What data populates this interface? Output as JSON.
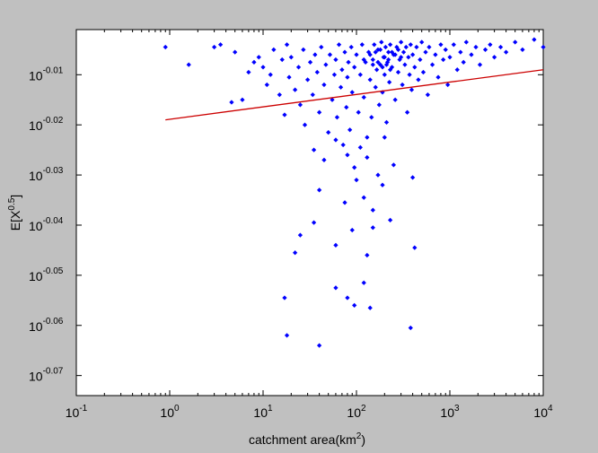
{
  "chart_data": {
    "type": "scatter",
    "title": "",
    "xlabel": "catchment area(km",
    "xlabel_sup": "2",
    "xlabel_suffix": ")",
    "ylabel": "E[X",
    "ylabel_sup": "0.5",
    "ylabel_suffix": "]",
    "xscale": "log",
    "yscale": "log",
    "xlim": [
      0.1,
      10000
    ],
    "ylim_exponent": [
      -0.074,
      -0.001
    ],
    "x_ticks": [
      {
        "base": "10",
        "exp": "-1",
        "value": 0.1
      },
      {
        "base": "10",
        "exp": "0",
        "value": 1
      },
      {
        "base": "10",
        "exp": "1",
        "value": 10
      },
      {
        "base": "10",
        "exp": "2",
        "value": 100
      },
      {
        "base": "10",
        "exp": "3",
        "value": 1000
      },
      {
        "base": "10",
        "exp": "4",
        "value": 10000
      }
    ],
    "y_ticks": [
      {
        "base": "10",
        "exp": "-0.01",
        "value": -0.01
      },
      {
        "base": "10",
        "exp": "-0.02",
        "value": -0.02
      },
      {
        "base": "10",
        "exp": "-0.03",
        "value": -0.03
      },
      {
        "base": "10",
        "exp": "-0.04",
        "value": -0.04
      },
      {
        "base": "10",
        "exp": "-0.05",
        "value": -0.05
      },
      {
        "base": "10",
        "exp": "-0.06",
        "value": -0.06
      },
      {
        "base": "10",
        "exp": "-0.07",
        "value": -0.07
      }
    ],
    "grid": false,
    "legend": "none",
    "series": [
      {
        "kind": "points",
        "color": "#0000ff",
        "marker": "diamond",
        "points": [
          [
            0.9,
            -0.0045
          ],
          [
            1.6,
            -0.008
          ],
          [
            3.0,
            -0.0045
          ],
          [
            3.5,
            -0.004
          ],
          [
            4.6,
            -0.0155
          ],
          [
            5,
            -0.0055
          ],
          [
            6,
            -0.015
          ],
          [
            7,
            -0.0095
          ],
          [
            8,
            -0.0075
          ],
          [
            9,
            -0.0065
          ],
          [
            10,
            -0.0085
          ],
          [
            11,
            -0.012
          ],
          [
            12,
            -0.01
          ],
          [
            13,
            -0.005
          ],
          [
            15,
            -0.014
          ],
          [
            16,
            -0.007
          ],
          [
            17,
            -0.018
          ],
          [
            18,
            -0.004
          ],
          [
            19,
            -0.0105
          ],
          [
            20,
            -0.0065
          ],
          [
            22,
            -0.013
          ],
          [
            24,
            -0.0085
          ],
          [
            25,
            -0.016
          ],
          [
            27,
            -0.005
          ],
          [
            28,
            -0.02
          ],
          [
            30,
            -0.011
          ],
          [
            32,
            -0.0075
          ],
          [
            34,
            -0.014
          ],
          [
            36,
            -0.006
          ],
          [
            38,
            -0.0095
          ],
          [
            40,
            -0.0175
          ],
          [
            42,
            -0.0045
          ],
          [
            45,
            -0.012
          ],
          [
            47,
            -0.008
          ],
          [
            50,
            -0.0215
          ],
          [
            52,
            -0.006
          ],
          [
            55,
            -0.015
          ],
          [
            58,
            -0.01
          ],
          [
            60,
            -0.007
          ],
          [
            62,
            -0.0185
          ],
          [
            65,
            -0.004
          ],
          [
            68,
            -0.0125
          ],
          [
            70,
            -0.009
          ],
          [
            72,
            -0.024
          ],
          [
            75,
            -0.0055
          ],
          [
            78,
            -0.0165
          ],
          [
            80,
            -0.0105
          ],
          [
            82,
            -0.0075
          ],
          [
            85,
            -0.021
          ],
          [
            88,
            -0.0045
          ],
          [
            90,
            -0.0135
          ],
          [
            95,
            -0.0085
          ],
          [
            100,
            -0.006
          ],
          [
            105,
            -0.0175
          ],
          [
            110,
            -0.01
          ],
          [
            115,
            -0.004
          ],
          [
            120,
            -0.0145
          ],
          [
            125,
            -0.0075
          ],
          [
            130,
            -0.0225
          ],
          [
            135,
            -0.0055
          ],
          [
            140,
            -0.011
          ],
          [
            145,
            -0.0185
          ],
          [
            150,
            -0.007
          ],
          [
            155,
            -0.004
          ],
          [
            160,
            -0.0125
          ],
          [
            165,
            -0.009
          ],
          [
            170,
            -0.005
          ],
          [
            175,
            -0.016
          ],
          [
            180,
            -0.008
          ],
          [
            185,
            -0.0035
          ],
          [
            190,
            -0.0135
          ],
          [
            195,
            -0.0065
          ],
          [
            200,
            -0.01
          ],
          [
            205,
            -0.0045
          ],
          [
            210,
            -0.0195
          ],
          [
            215,
            -0.0075
          ],
          [
            220,
            -0.0055
          ],
          [
            225,
            -0.0115
          ],
          [
            230,
            -0.004
          ],
          [
            240,
            -0.0085
          ],
          [
            250,
            -0.006
          ],
          [
            260,
            -0.015
          ],
          [
            270,
            -0.0045
          ],
          [
            280,
            -0.0095
          ],
          [
            290,
            -0.007
          ],
          [
            300,
            -0.0035
          ],
          [
            310,
            -0.012
          ],
          [
            320,
            -0.0055
          ],
          [
            330,
            -0.008
          ],
          [
            340,
            -0.0045
          ],
          [
            350,
            -0.0175
          ],
          [
            360,
            -0.0065
          ],
          [
            370,
            -0.01
          ],
          [
            380,
            -0.004
          ],
          [
            390,
            -0.013
          ],
          [
            400,
            -0.006
          ],
          [
            420,
            -0.0085
          ],
          [
            440,
            -0.0045
          ],
          [
            460,
            -0.011
          ],
          [
            480,
            -0.007
          ],
          [
            500,
            -0.0035
          ],
          [
            520,
            -0.0095
          ],
          [
            550,
            -0.0055
          ],
          [
            580,
            -0.014
          ],
          [
            600,
            -0.0045
          ],
          [
            650,
            -0.008
          ],
          [
            700,
            -0.006
          ],
          [
            750,
            -0.0105
          ],
          [
            800,
            -0.004
          ],
          [
            850,
            -0.007
          ],
          [
            900,
            -0.005
          ],
          [
            950,
            -0.012
          ],
          [
            1000,
            -0.0065
          ],
          [
            1100,
            -0.004
          ],
          [
            1200,
            -0.009
          ],
          [
            1300,
            -0.0055
          ],
          [
            1400,
            -0.0075
          ],
          [
            1500,
            -0.0035
          ],
          [
            1700,
            -0.006
          ],
          [
            1900,
            -0.0045
          ],
          [
            2100,
            -0.008
          ],
          [
            2400,
            -0.005
          ],
          [
            2700,
            -0.004
          ],
          [
            3000,
            -0.0065
          ],
          [
            3500,
            -0.0045
          ],
          [
            4000,
            -0.0055
          ],
          [
            5000,
            -0.0035
          ],
          [
            6000,
            -0.005
          ],
          [
            8000,
            -0.003
          ],
          [
            10000,
            -0.0045
          ],
          [
            120,
            -0.007
          ],
          [
            140,
            -0.006
          ],
          [
            160,
            -0.0055
          ],
          [
            180,
            -0.005
          ],
          [
            200,
            -0.0065
          ],
          [
            220,
            -0.007
          ],
          [
            240,
            -0.0055
          ],
          [
            260,
            -0.006
          ],
          [
            280,
            -0.005
          ],
          [
            300,
            -0.0065
          ],
          [
            150,
            -0.008
          ],
          [
            170,
            -0.0075
          ],
          [
            190,
            -0.0085
          ],
          [
            210,
            -0.008
          ],
          [
            230,
            -0.009
          ],
          [
            35,
            -0.025
          ],
          [
            45,
            -0.027
          ],
          [
            60,
            -0.023
          ],
          [
            80,
            -0.026
          ],
          [
            95,
            -0.0285
          ],
          [
            110,
            -0.0245
          ],
          [
            130,
            -0.0265
          ],
          [
            170,
            -0.03
          ],
          [
            200,
            -0.0225
          ],
          [
            250,
            -0.028
          ],
          [
            40,
            -0.033
          ],
          [
            75,
            -0.0355
          ],
          [
            100,
            -0.031
          ],
          [
            120,
            -0.0345
          ],
          [
            150,
            -0.037
          ],
          [
            190,
            -0.032
          ],
          [
            230,
            -0.039
          ],
          [
            400,
            -0.0305
          ],
          [
            25,
            -0.042
          ],
          [
            35,
            -0.0395
          ],
          [
            60,
            -0.044
          ],
          [
            90,
            -0.041
          ],
          [
            130,
            -0.046
          ],
          [
            150,
            -0.0405
          ],
          [
            420,
            -0.0445
          ],
          [
            22,
            -0.0455
          ],
          [
            60,
            -0.0525
          ],
          [
            80,
            -0.0545
          ],
          [
            120,
            -0.0515
          ],
          [
            140,
            -0.0565
          ],
          [
            17,
            -0.0545
          ],
          [
            95,
            -0.056
          ],
          [
            18,
            -0.062
          ],
          [
            380,
            -0.0605
          ],
          [
            40,
            -0.064
          ]
        ]
      },
      {
        "kind": "line",
        "color": "#cc0000",
        "points": [
          [
            0.9,
            -0.019
          ],
          [
            10000,
            -0.009
          ]
        ]
      }
    ]
  }
}
